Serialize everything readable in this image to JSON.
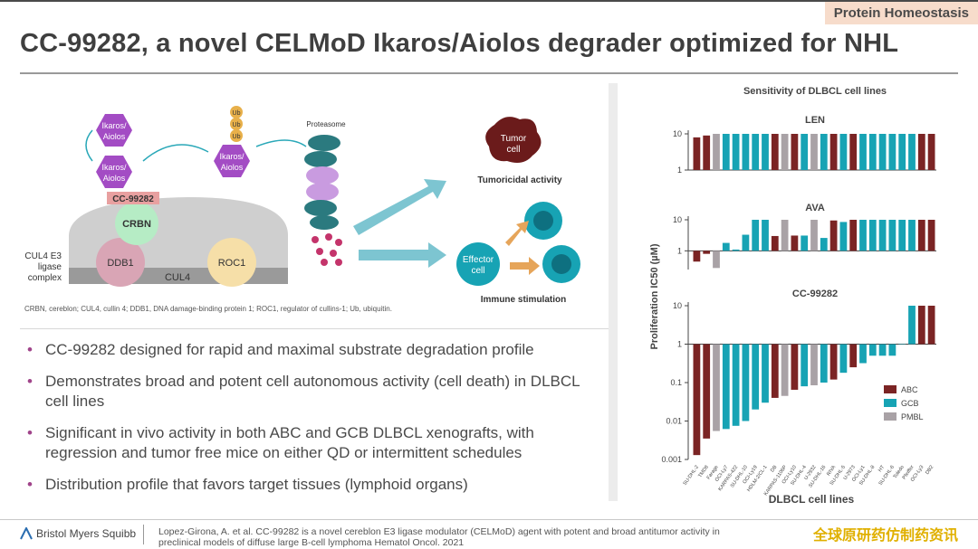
{
  "header": {
    "tag": "Protein Homeostasis",
    "title": "CC-99282, a novel CELMoD Ikaros/Aiolos degrader optimized for NHL"
  },
  "diagram": {
    "ikaros_label_1": "Ikaros/",
    "ikaros_label_2": "Aiolos",
    "drug": "CC-99282",
    "crbn": "CRBN",
    "ddb1": "DDB1",
    "roc1": "ROC1",
    "cul4": "CUL4",
    "complex_1": "CUL4 E3",
    "complex_2": "ligase",
    "complex_3": "complex",
    "ub": "Ub",
    "proteasome": "Proteasome",
    "tumor_1": "Tumor",
    "tumor_2": "cell",
    "tumoricidal": "Tumoricidal activity",
    "effector_1": "Effector",
    "effector_2": "cell",
    "immune": "Immune stimulation",
    "footnote": "CRBN, cereblon; CUL4, cullin 4; DDB1, DNA damage-binding protein 1; ROC1, regulator of cullins-1; Ub, ubiquitin."
  },
  "bullets": [
    "CC-99282 designed for rapid and maximal substrate degradation profile",
    "Demonstrates broad and potent cell autonomous activity (cell death) in DLBCL cell lines",
    "Significant in vivo activity in both ABC and GCB DLBCL xenografts, with regression and tumor free mice on either QD or intermittent schedules",
    "Distribution profile that favors target tissues (lymphoid organs)"
  ],
  "footer": {
    "logo": "Bristol Myers Squibb",
    "citation": "Lopez-Girona, A. et al. CC-99282 is a novel cereblon E3 ligase modulator (CELMoD) agent with potent and broad antitumor activity in preclinical models of diffuse large B-cell lymphoma Hematol Oncol. 2021",
    "watermark": "全球原研药仿制药资讯"
  },
  "colors": {
    "ABC": "#7b2424",
    "GCB": "#17a3b4",
    "PMBL": "#a9a2a6",
    "accent": "#a0448a"
  },
  "chart_data": {
    "type": "bar",
    "title": "Sensitivity of DLBCL cell lines",
    "xlabel": "DLBCL cell lines",
    "ylabel": "Proliferation IC50 (µM)",
    "yscale": "log",
    "legend": {
      "placement": "right",
      "entries": [
        "ABC",
        "GCB",
        "PMBL"
      ]
    },
    "categories": [
      "SU-DHL-2",
      "TMD8",
      "Farage",
      "OCI-Ly7",
      "KARPAS-422",
      "SU-DHL-10",
      "OCI-Ly19",
      "HDLM-2/CL-1",
      "DB",
      "KARPAS-1106P",
      "OCI-Ly10",
      "SU-DHL-4",
      "U-2932",
      "SU-DHL-16",
      "RIVA",
      "SU-DHL-5",
      "U-2973",
      "OCI-Ly1",
      "SU-DHL-8",
      "HT",
      "SU-DHL-6",
      "Toledo",
      "Pfeiffer",
      "OCI-Ly3",
      "DB2"
    ],
    "types": [
      "ABC",
      "ABC",
      "PMBL",
      "GCB",
      "GCB",
      "GCB",
      "GCB",
      "GCB",
      "ABC",
      "PMBL",
      "ABC",
      "GCB",
      "PMBL",
      "GCB",
      "ABC",
      "GCB",
      "ABC",
      "GCB",
      "GCB",
      "GCB",
      "GCB",
      "GCB",
      "GCB",
      "ABC",
      "ABC"
    ],
    "panels": [
      {
        "name": "LEN",
        "ylim": [
          1,
          10
        ],
        "ticks": [
          10,
          1
        ],
        "values": [
          8,
          9,
          10,
          10,
          10,
          10,
          10,
          10,
          10,
          10,
          10,
          10,
          10,
          10,
          10,
          10,
          10,
          10,
          10,
          10,
          10,
          10,
          10,
          10,
          10
        ]
      },
      {
        "name": "AVA",
        "ylim": [
          0.25,
          10
        ],
        "ticks": [
          10,
          1
        ],
        "values": [
          0.45,
          0.8,
          0.28,
          1.8,
          1.1,
          3.3,
          10,
          10,
          3,
          10,
          3.1,
          3.1,
          10,
          2.6,
          9.5,
          8.5,
          10,
          10,
          10,
          10,
          10,
          10,
          10,
          10,
          10
        ]
      },
      {
        "name": "CC-99282",
        "ylim": [
          0.001,
          10
        ],
        "ticks": [
          10,
          1,
          0.1,
          0.01,
          0.001
        ],
        "values": [
          0.0013,
          0.0035,
          0.0055,
          0.0062,
          0.0075,
          0.01,
          0.02,
          0.03,
          0.04,
          0.045,
          0.065,
          0.08,
          0.085,
          0.1,
          0.12,
          0.18,
          0.25,
          0.32,
          0.5,
          0.5,
          0.5,
          1,
          10,
          10,
          10
        ]
      }
    ]
  }
}
